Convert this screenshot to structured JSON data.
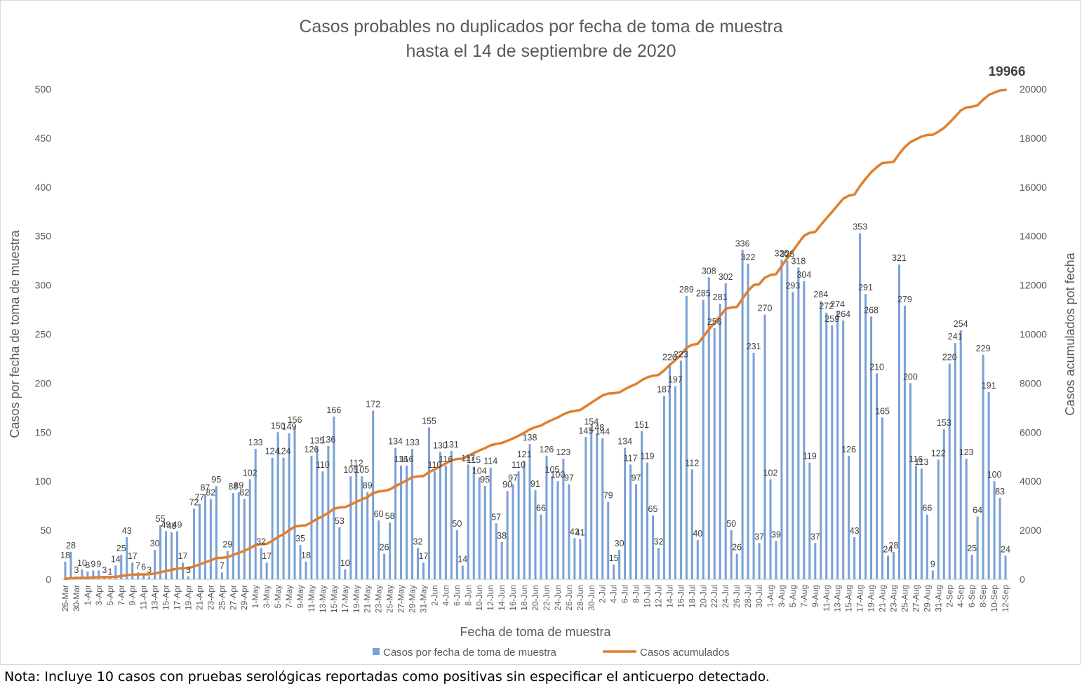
{
  "chart_data": {
    "type": "bar+line",
    "title_lines": [
      "Casos probables no duplicados por fecha de toma de muestra",
      "hasta el  14 de septiembre de 2020"
    ],
    "xlabel": "Fecha de toma de muestra",
    "ylabel": "Casos por fecha de toma de muestra",
    "y2label": "Casos acumulados pot fecha",
    "ylim": [
      0,
      500
    ],
    "y_ticks": [
      "0",
      "50",
      "100",
      "150",
      "200",
      "250",
      "300",
      "350",
      "400",
      "450",
      "500"
    ],
    "y2lim": [
      0,
      20000
    ],
    "y2_ticks": [
      "0",
      "2000",
      "4000",
      "6000",
      "8000",
      "10000",
      "12000",
      "14000",
      "16000",
      "18000",
      "20000"
    ],
    "legend": {
      "position": "bottom",
      "bars": "Casos por fecha de toma de muestra",
      "line": "Casos acumulados"
    },
    "final_cumulative_label": "19966",
    "series_colors": {
      "bars": "#7aa1d6",
      "line": "#e07f2e"
    },
    "x_tick_labels": [
      "26-Mar",
      "30-Mar",
      "1-Apr",
      "3-Apr",
      "5-Apr",
      "7-Apr",
      "9-Apr",
      "11-Apr",
      "13-Apr",
      "15-Apr",
      "17-Apr",
      "19-Apr",
      "21-Apr",
      "23-Apr",
      "25-Apr",
      "27-Apr",
      "29-Apr",
      "1-May",
      "3-May",
      "5-May",
      "7-May",
      "9-May",
      "11-May",
      "13-May",
      "15-May",
      "17-May",
      "19-May",
      "21-May",
      "23-May",
      "25-May",
      "27-May",
      "29-May",
      "31-May",
      "2-Jun",
      "4-Jun",
      "6-Jun",
      "8-Jun",
      "10-Jun",
      "12-Jun",
      "14-Jun",
      "16-Jun",
      "18-Jun",
      "20-Jun",
      "22-Jun",
      "24-Jun",
      "26-Jun",
      "28-Jun",
      "30-Jun",
      "2-Jul",
      "4-Jul",
      "6-Jul",
      "8-Jul",
      "10-Jul",
      "12-Jul",
      "14-Jul",
      "16-Jul",
      "18-Jul",
      "20-Jul",
      "22-Jul",
      "24-Jul",
      "26-Jul",
      "28-Jul",
      "30-Jul",
      "1-Aug",
      "3-Aug",
      "5-Aug",
      "7-Aug",
      "9-Aug",
      "11-Aug",
      "13-Aug",
      "15-Aug",
      "17-Aug",
      "19-Aug",
      "21-Aug",
      "23-Aug",
      "25-Aug",
      "27-Aug",
      "29-Aug",
      "31-Aug",
      "2-Sep",
      "4-Sep",
      "6-Sep",
      "8-Sep",
      "10-Sep",
      "12-Sep"
    ],
    "bar_values": [
      18,
      28,
      3,
      10,
      8,
      9,
      9,
      3,
      1,
      14,
      25,
      43,
      17,
      7,
      6,
      3,
      30,
      55,
      49,
      48,
      49,
      17,
      3,
      72,
      77,
      87,
      82,
      95,
      7,
      29,
      88,
      89,
      82,
      102,
      133,
      32,
      17,
      124,
      150,
      124,
      149,
      156,
      35,
      18,
      126,
      135,
      110,
      136,
      166,
      53,
      10,
      105,
      112,
      105,
      89,
      172,
      60,
      26,
      58,
      134,
      116,
      116,
      133,
      32,
      17,
      155,
      110,
      130,
      116,
      131,
      50,
      14,
      117,
      115,
      104,
      95,
      114,
      57,
      38,
      90,
      97,
      110,
      121,
      138,
      91,
      66,
      126,
      105,
      100,
      123,
      97,
      42,
      41,
      145,
      154,
      148,
      144,
      79,
      15,
      30,
      134,
      117,
      97,
      151,
      119,
      65,
      32,
      187,
      220,
      197,
      223,
      289,
      112,
      40,
      285,
      308,
      256,
      281,
      302,
      50,
      26,
      336,
      322,
      231,
      37,
      270,
      102,
      39,
      326,
      325,
      293,
      318,
      304,
      119,
      37,
      284,
      272,
      259,
      274,
      264,
      126,
      43,
      353,
      291,
      268,
      210,
      165,
      24,
      28,
      321,
      279,
      200,
      116,
      113,
      66,
      9,
      122,
      153,
      220,
      241,
      254,
      123,
      25,
      64,
      229,
      191,
      100,
      83,
      24
    ],
    "cumulative": [
      18,
      46,
      49,
      59,
      67,
      76,
      85,
      88,
      89,
      103,
      128,
      171,
      188,
      195,
      201,
      204,
      234,
      289,
      338,
      386,
      435,
      452,
      455,
      527,
      604,
      691,
      773,
      868,
      875,
      904,
      992,
      1081,
      1163,
      1265,
      1398,
      1430,
      1447,
      1571,
      1721,
      1845,
      1994,
      2150,
      2185,
      2203,
      2329,
      2464,
      2574,
      2710,
      2876,
      2929,
      2939,
      3044,
      3156,
      3261,
      3350,
      3522,
      3582,
      3608,
      3666,
      3800,
      3916,
      4032,
      4165,
      4197,
      4214,
      4369,
      4479,
      4609,
      4725,
      4856,
      4906,
      4920,
      5037,
      5152,
      5256,
      5351,
      5465,
      5522,
      5560,
      5650,
      5747,
      5857,
      5978,
      6116,
      6207,
      6273,
      6399,
      6504,
      6604,
      6727,
      6824,
      6866,
      6907,
      7052,
      7206,
      7354,
      7498,
      7577,
      7592,
      7622,
      7756,
      7873,
      7970,
      8121,
      8240,
      8305,
      8337,
      8524,
      8744,
      8941,
      9164,
      9453,
      9565,
      9605,
      9890,
      10198,
      10454,
      10735,
      11037,
      11087,
      11113,
      11449,
      11771,
      12002,
      12039,
      12309,
      12411,
      12450,
      12776,
      13101,
      13394,
      13712,
      14016,
      14135,
      14172,
      14456,
      14728,
      14987,
      15261,
      15525,
      15651,
      15694,
      16047,
      16338,
      16606,
      16816,
      16981,
      17005,
      17033,
      17354,
      17633,
      17833,
      17949,
      18062,
      18128,
      18137,
      18259,
      18412,
      18632,
      18873,
      19127,
      19250,
      19275,
      19339,
      19568,
      19759,
      19859,
      19942,
      19966
    ]
  },
  "footnote": "Nota: Incluye 10 casos con pruebas serológicas reportadas como positivas sin especificar el anticuerpo detectado."
}
